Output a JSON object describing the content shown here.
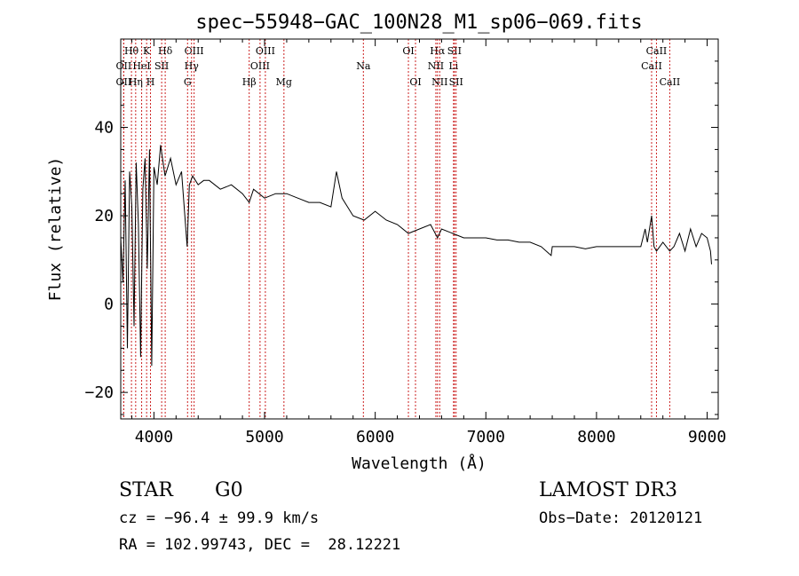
{
  "chart_data": {
    "type": "line",
    "title": "spec−55948−GAC_100N28_M1_sp06−069.fits",
    "xlabel": "Wavelength (Å)",
    "ylabel": "Flux (relative)",
    "xlim": [
      3700,
      9100
    ],
    "ylim": [
      -26,
      60
    ],
    "xticks": [
      4000,
      5000,
      6000,
      7000,
      8000,
      9000
    ],
    "yticks": [
      -20,
      0,
      20,
      40
    ],
    "grid": false,
    "series": [
      {
        "name": "flux",
        "x": [
          3700,
          3720,
          3740,
          3760,
          3780,
          3800,
          3820,
          3840,
          3860,
          3880,
          3900,
          3920,
          3940,
          3960,
          3980,
          4000,
          4030,
          4060,
          4100,
          4150,
          4200,
          4250,
          4300,
          4320,
          4350,
          4400,
          4450,
          4500,
          4600,
          4700,
          4800,
          4861,
          4900,
          5000,
          5100,
          5200,
          5300,
          5400,
          5500,
          5600,
          5650,
          5700,
          5750,
          5800,
          5900,
          6000,
          6100,
          6200,
          6300,
          6400,
          6500,
          6563,
          6600,
          6700,
          6800,
          6900,
          7000,
          7100,
          7200,
          7300,
          7400,
          7500,
          7590,
          7600,
          7700,
          7800,
          7900,
          8000,
          8100,
          8200,
          8300,
          8400,
          8440,
          8460,
          8498,
          8520,
          8542,
          8600,
          8662,
          8700,
          8750,
          8800,
          8850,
          8900,
          8950,
          9000,
          9030,
          9040
        ],
        "values": [
          15,
          5,
          28,
          -10,
          30,
          22,
          -5,
          32,
          18,
          -12,
          26,
          33,
          8,
          35,
          -14,
          31,
          27,
          36,
          29,
          33,
          27,
          30,
          13,
          27,
          29,
          27,
          28,
          28,
          26,
          27,
          25,
          23,
          26,
          24,
          25,
          25,
          24,
          23,
          23,
          22,
          30,
          24,
          22,
          20,
          19,
          21,
          19,
          18,
          16,
          17,
          18,
          15,
          17,
          16,
          15,
          15,
          15,
          14.5,
          14.5,
          14,
          14,
          13,
          11,
          13,
          13,
          13,
          12.5,
          13,
          13,
          13,
          13,
          13,
          17,
          14,
          20,
          13,
          12,
          14,
          12,
          13,
          16,
          12,
          17,
          13,
          16,
          15,
          12,
          9
        ]
      }
    ],
    "lines": [
      {
        "label": "Hθ",
        "wl": 3797,
        "row": 1
      },
      {
        "label": "OII",
        "wl": 3727,
        "row": 2
      },
      {
        "label": "OII",
        "wl": 3727,
        "row": 3
      },
      {
        "label": "K",
        "wl": 3934,
        "row": 1
      },
      {
        "label": "HeI",
        "wl": 3889,
        "row": 2
      },
      {
        "label": "Hη",
        "wl": 3835,
        "row": 3
      },
      {
        "label": "H",
        "wl": 3969,
        "row": 3
      },
      {
        "label": "Hδ",
        "wl": 4102,
        "row": 1
      },
      {
        "label": "SII",
        "wl": 4070,
        "row": 2
      },
      {
        "label": "OIII",
        "wl": 4363,
        "row": 1
      },
      {
        "label": "Hγ",
        "wl": 4340,
        "row": 2
      },
      {
        "label": "G",
        "wl": 4304,
        "row": 3
      },
      {
        "label": "Hβ",
        "wl": 4861,
        "row": 3
      },
      {
        "label": "OIII",
        "wl": 4959,
        "row": 2
      },
      {
        "label": "OIII",
        "wl": 5007,
        "row": 1
      },
      {
        "label": "Mg",
        "wl": 5175,
        "row": 3
      },
      {
        "label": "Na",
        "wl": 5893,
        "row": 2
      },
      {
        "label": "OI",
        "wl": 6300,
        "row": 1
      },
      {
        "label": "OI",
        "wl": 6364,
        "row": 3
      },
      {
        "label": "Hα",
        "wl": 6563,
        "row": 1
      },
      {
        "label": "NII",
        "wl": 6548,
        "row": 2
      },
      {
        "label": "NII",
        "wl": 6583,
        "row": 3
      },
      {
        "label": "SII",
        "wl": 6716,
        "row": 1
      },
      {
        "label": "Li",
        "wl": 6708,
        "row": 2
      },
      {
        "label": "SII",
        "wl": 6731,
        "row": 3
      },
      {
        "label": "CaII",
        "wl": 8498,
        "row": 2
      },
      {
        "label": "CaII",
        "wl": 8542,
        "row": 1
      },
      {
        "label": "CaII",
        "wl": 8662,
        "row": 3
      }
    ]
  },
  "info": {
    "class_label": "STAR",
    "subclass": "G0",
    "survey": "LAMOST DR3",
    "cz": "cz = −96.4 ± 99.9 km/s",
    "obs_date": "Obs−Date: 20120121",
    "coords": "RA = 102.99743, DEC =  28.12221"
  }
}
